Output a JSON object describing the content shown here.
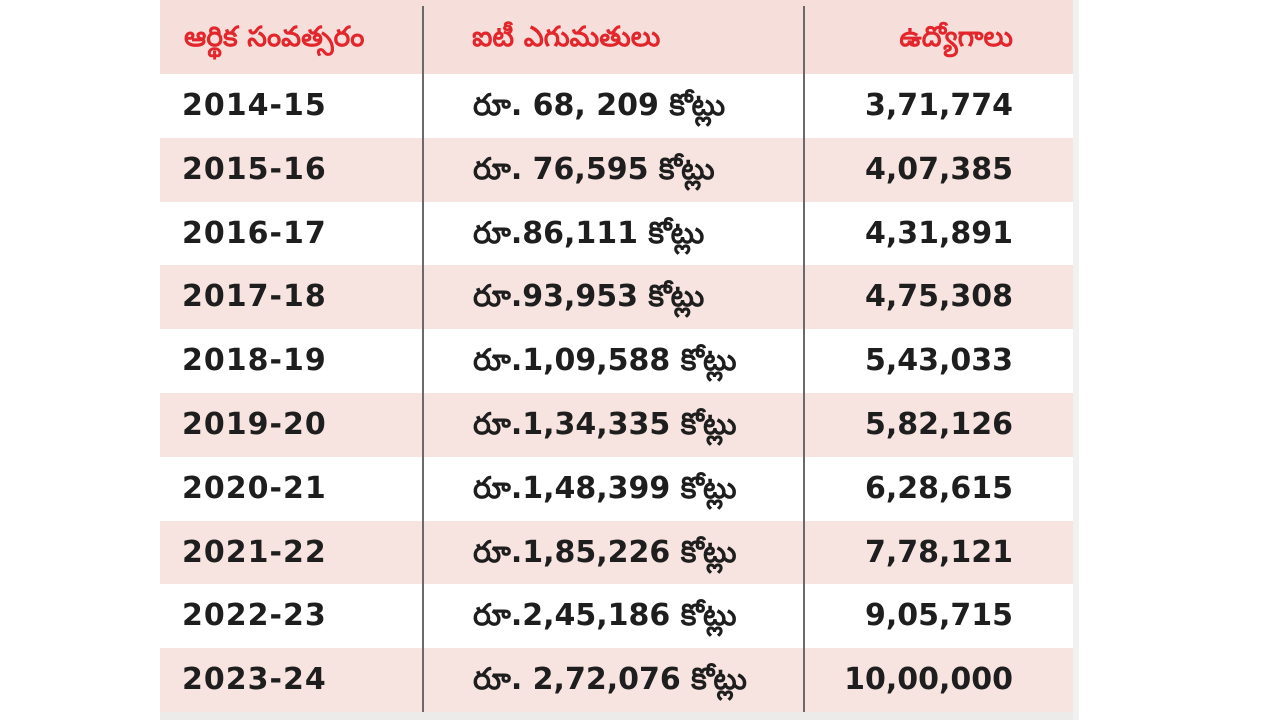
{
  "table": {
    "headers": {
      "year": "ఆర్థిక సంవత్సరం",
      "exports": "ఐటీ ఎగుమతులు",
      "jobs": "ఉద్యోగాలు"
    },
    "rows": [
      {
        "year": "2014-15",
        "exports": "రూ. 68, 209 కోట్లు",
        "jobs": "3,71,774"
      },
      {
        "year": "2015-16",
        "exports": "రూ. 76,595 కోట్లు",
        "jobs": "4,07,385"
      },
      {
        "year": "2016-17",
        "exports": "రూ.86,111 కోట్లు",
        "jobs": "4,31,891"
      },
      {
        "year": "2017-18",
        "exports": "రూ.93,953 కోట్లు",
        "jobs": "4,75,308"
      },
      {
        "year": "2018-19",
        "exports": "రూ.1,09,588 కోట్లు",
        "jobs": "5,43,033"
      },
      {
        "year": "2019-20",
        "exports": "రూ.1,34,335 కోట్లు",
        "jobs": "5,82,126"
      },
      {
        "year": "2020-21",
        "exports": "రూ.1,48,399 కోట్లు",
        "jobs": "6,28,615"
      },
      {
        "year": "2021-22",
        "exports": "రూ.1,85,226 కోట్లు",
        "jobs": "7,78,121"
      },
      {
        "year": "2022-23",
        "exports": "రూ.2,45,186 కోట్లు",
        "jobs": "9,05,715"
      },
      {
        "year": "2023-24",
        "exports": "రూ. 2,72,076 కోట్లు",
        "jobs": "10,00,000"
      }
    ]
  },
  "colors": {
    "header_text": "#e2262b",
    "body_text": "#1e1e1e",
    "row_alt": "#f7e3df",
    "row_white": "#ffffff"
  }
}
